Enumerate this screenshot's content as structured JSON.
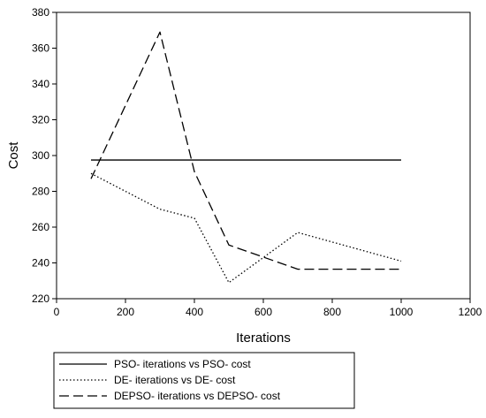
{
  "chart_data": {
    "type": "line",
    "title": "",
    "xlabel": "Iterations",
    "ylabel": "Cost",
    "xlim": [
      0,
      1200
    ],
    "ylim": [
      220,
      380
    ],
    "xticks": [
      0,
      200,
      400,
      600,
      800,
      1000,
      1200
    ],
    "yticks": [
      220,
      240,
      260,
      280,
      300,
      320,
      340,
      360,
      380
    ],
    "grid": false,
    "legend_position": "bottom-left, below plot",
    "series": [
      {
        "name": "PSO- iterations vs PSO- cost",
        "style": "solid",
        "color": "#000000",
        "x": [
          100,
          1000
        ],
        "y": [
          297.5,
          297.5
        ]
      },
      {
        "name": "DE- iterations vs DE- cost",
        "style": "dotted",
        "color": "#000000",
        "x": [
          100,
          300,
          400,
          500,
          700,
          1000
        ],
        "y": [
          290,
          270,
          265,
          229,
          257,
          241
        ]
      },
      {
        "name": "DEPSO- iterations vs DEPSO- cost",
        "style": "dashed",
        "color": "#000000",
        "x": [
          100,
          300,
          400,
          500,
          700,
          1000
        ],
        "y": [
          287,
          369,
          291,
          250,
          236.5,
          236.5
        ]
      }
    ]
  }
}
